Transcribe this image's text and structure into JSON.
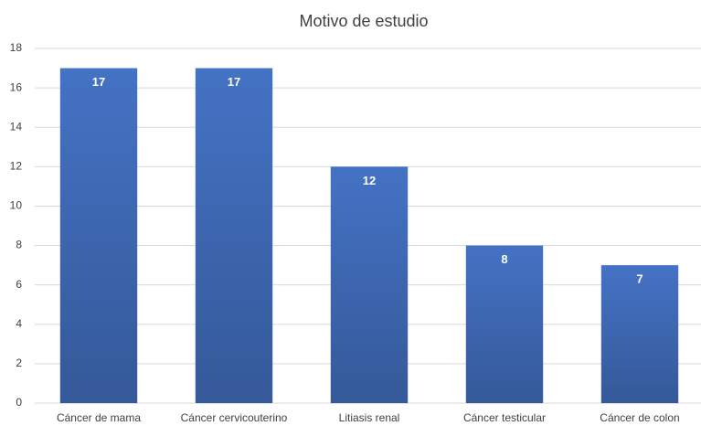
{
  "chart_data": {
    "type": "bar",
    "title": "Motivo de estudio",
    "categories": [
      "Cáncer de mama",
      "Cáncer cervicouterino",
      "Litiasis renal",
      "Cáncer testicular",
      "Cáncer de colon"
    ],
    "values": [
      17,
      17,
      12,
      8,
      7
    ],
    "color": "#4472c4",
    "ylim": [
      0,
      18
    ],
    "yticks": [
      0,
      2,
      4,
      6,
      8,
      10,
      12,
      14,
      16,
      18
    ],
    "grid": true
  }
}
